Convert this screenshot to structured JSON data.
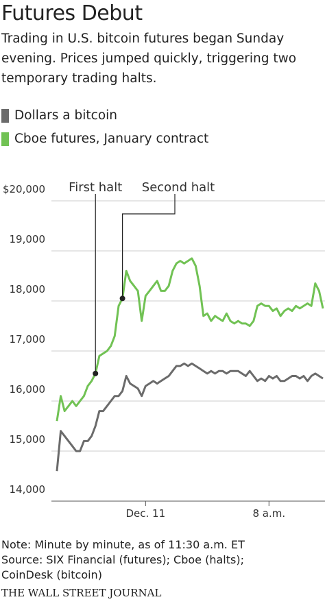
{
  "chart_data": {
    "type": "line",
    "title": "Futures Debut",
    "subtitle": "Trading in U.S. bitcoin futures began Sunday evening. Prices jumped quickly, triggering two temporary trading halts.",
    "categories": [
      null,
      null,
      null,
      null,
      null,
      null,
      null,
      null,
      null,
      null,
      null,
      null,
      null,
      null,
      null,
      null,
      null,
      null,
      null,
      null,
      null,
      null,
      null,
      "Dec. 11",
      null,
      null,
      null,
      null,
      null,
      null,
      null,
      null,
      null,
      null,
      null,
      null,
      null,
      null,
      null,
      null,
      null,
      null,
      null,
      null,
      null,
      null,
      null,
      null,
      null,
      null,
      null,
      null,
      null,
      null,
      null,
      "8 a.m.",
      null,
      null,
      null,
      null,
      null,
      null,
      null,
      null,
      null,
      null,
      null,
      null,
      null,
      null
    ],
    "series": [
      {
        "name": "Dollars a bitcoin",
        "color": "#6b6b6b",
        "values": [
          14600,
          15400,
          15300,
          15200,
          15100,
          15000,
          15000,
          15200,
          15200,
          15300,
          15500,
          15800,
          15800,
          15900,
          16000,
          16100,
          16100,
          16200,
          16500,
          16350,
          16300,
          16250,
          16100,
          16300,
          16350,
          16400,
          16350,
          16400,
          16450,
          16500,
          16600,
          16700,
          16700,
          16750,
          16700,
          16750,
          16700,
          16650,
          16600,
          16550,
          16600,
          16550,
          16600,
          16600,
          16550,
          16600,
          16600,
          16600,
          16550,
          16500,
          16600,
          16500,
          16400,
          16450,
          16400,
          16500,
          16450,
          16500,
          16400,
          16400,
          16450,
          16500,
          16500,
          16450,
          16500,
          16400,
          16500,
          16550,
          16500,
          16450
        ]
      },
      {
        "name": "Cboe futures, January contract",
        "color": "#71c254",
        "values": [
          15600,
          16100,
          15800,
          15900,
          16000,
          15900,
          16000,
          16100,
          16300,
          16400,
          16550,
          16900,
          16950,
          17000,
          17100,
          17300,
          17900,
          18050,
          18600,
          18400,
          18300,
          18200,
          17600,
          18100,
          18200,
          18300,
          18400,
          18200,
          18200,
          18300,
          18600,
          18750,
          18800,
          18750,
          18800,
          18850,
          18700,
          18300,
          17700,
          17750,
          17600,
          17700,
          17650,
          17600,
          17750,
          17600,
          17550,
          17600,
          17550,
          17550,
          17500,
          17600,
          17900,
          17950,
          17900,
          17900,
          17800,
          17850,
          17700,
          17800,
          17850,
          17800,
          17900,
          17850,
          17900,
          17950,
          17900,
          18350,
          18200,
          17850
        ]
      }
    ],
    "ylim": [
      14000,
      20000
    ],
    "yticks": [
      {
        "value": 14000,
        "label": "14,000"
      },
      {
        "value": 15000,
        "label": "15,000"
      },
      {
        "value": 16000,
        "label": "16,000"
      },
      {
        "value": 17000,
        "label": "17,000"
      },
      {
        "value": 18000,
        "label": "18,000"
      },
      {
        "value": 19000,
        "label": "19,000"
      },
      {
        "value": 20000,
        "label": "$20,000"
      }
    ],
    "grid": true,
    "annotations": [
      "First halt",
      "Second halt"
    ],
    "note": "Note: Minute by minute, as of 11:30 a.m. ET",
    "source": "Source: SIX Financial (futures); Cboe (halts); CoinDesk (bitcoin)",
    "credit": "THE WALL STREET JOURNAL"
  }
}
